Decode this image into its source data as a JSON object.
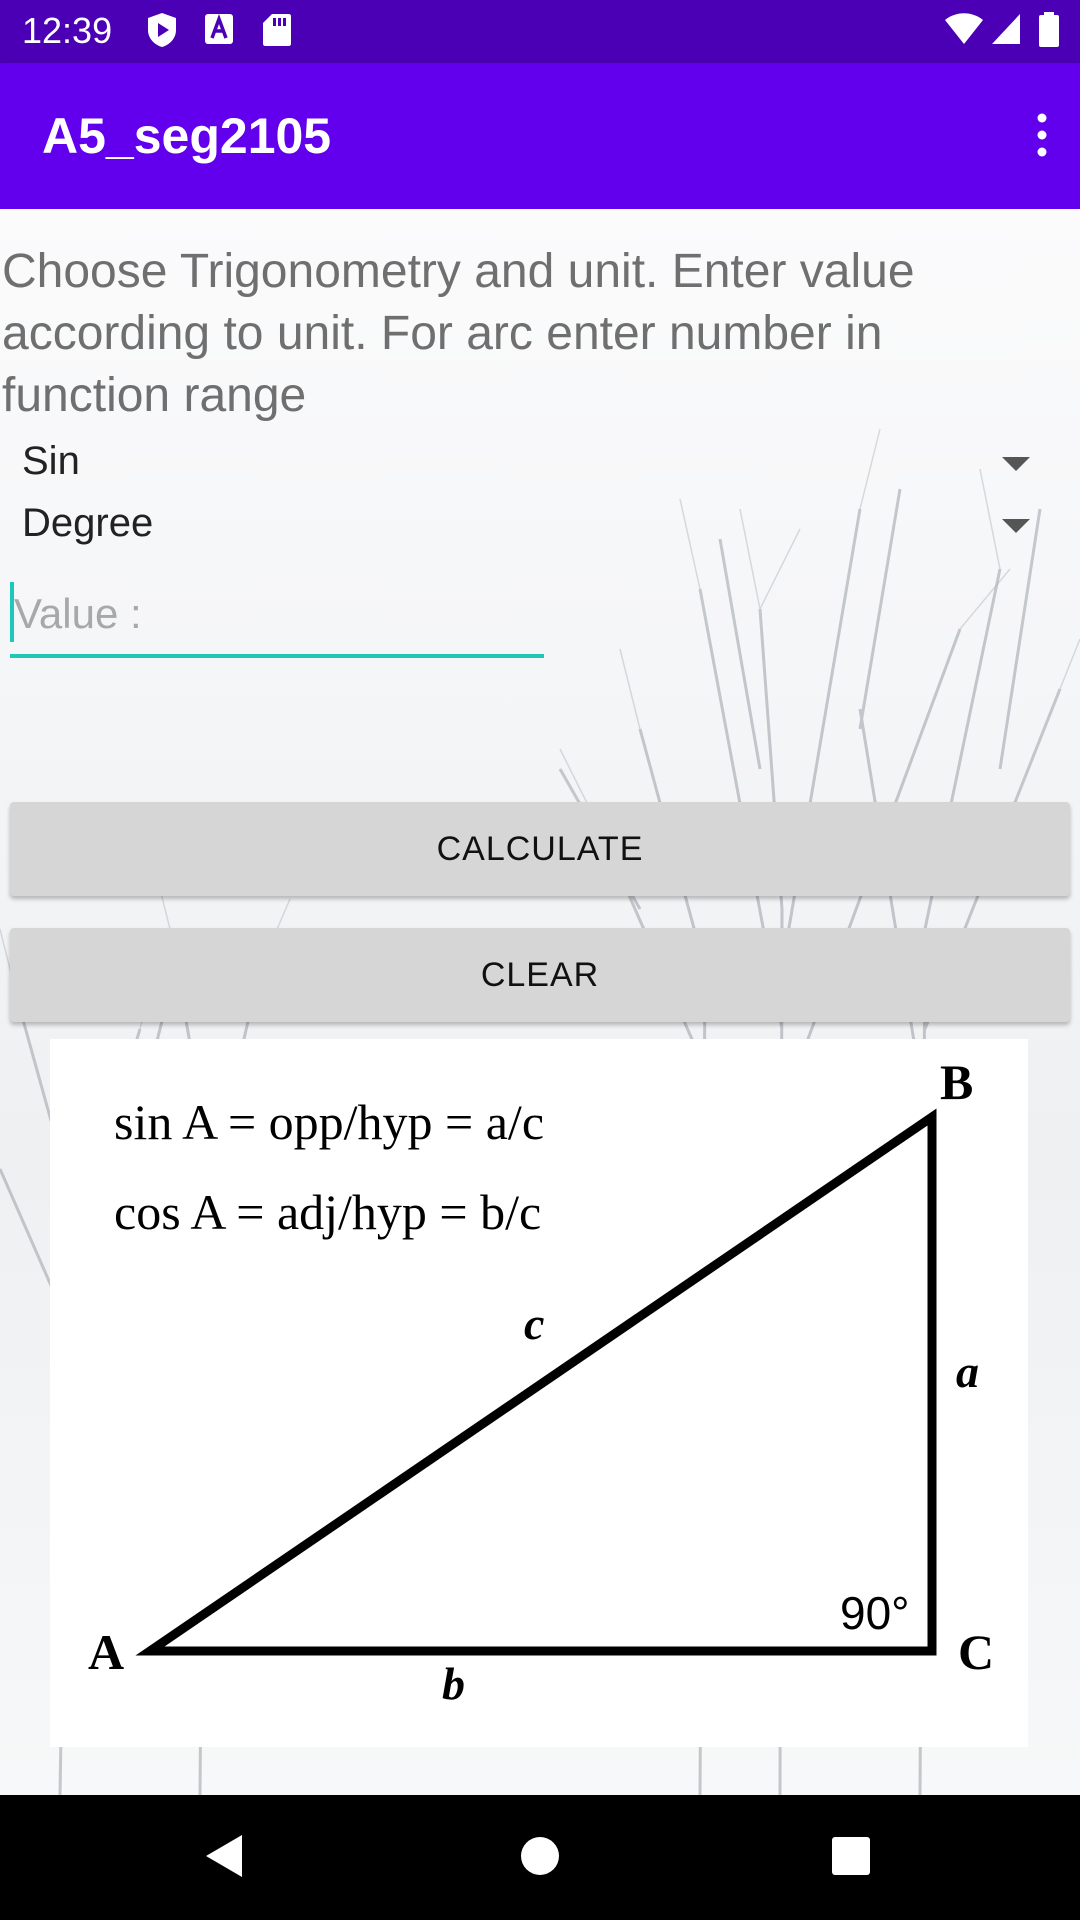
{
  "status_bar": {
    "time": "12:39",
    "icons": [
      "play-protect-icon",
      "font-a-icon",
      "sd-card-icon",
      "wifi-icon",
      "signal-icon",
      "battery-icon"
    ]
  },
  "app_bar": {
    "title": "A5_seg2105",
    "menu_icon": "overflow-menu-icon"
  },
  "main": {
    "instructions": "Choose Trigonometry and unit. Enter value according to unit. For arc enter number in function range",
    "function_spinner": {
      "selected": "Sin"
    },
    "unit_spinner": {
      "selected": "Degree"
    },
    "value_input": {
      "placeholder": "Value :",
      "value": ""
    },
    "calculate_label": "CALCULATE",
    "clear_label": "CLEAR"
  },
  "diagram": {
    "formula_sin": "sin A = opp/hyp = a/c",
    "formula_cos": "cos A = adj/hyp = b/c",
    "vertex_a": "A",
    "vertex_b": "B",
    "vertex_c": "C",
    "side_a": "a",
    "side_b": "b",
    "side_c": "c",
    "angle": "90°"
  },
  "nav_bar": {
    "icons": [
      "back-icon",
      "home-icon",
      "recents-icon"
    ]
  },
  "colors": {
    "status_bar": "#4b00b5",
    "app_bar": "#6200ee",
    "accent": "#1ec8b8",
    "button": "#d6d6d6"
  }
}
